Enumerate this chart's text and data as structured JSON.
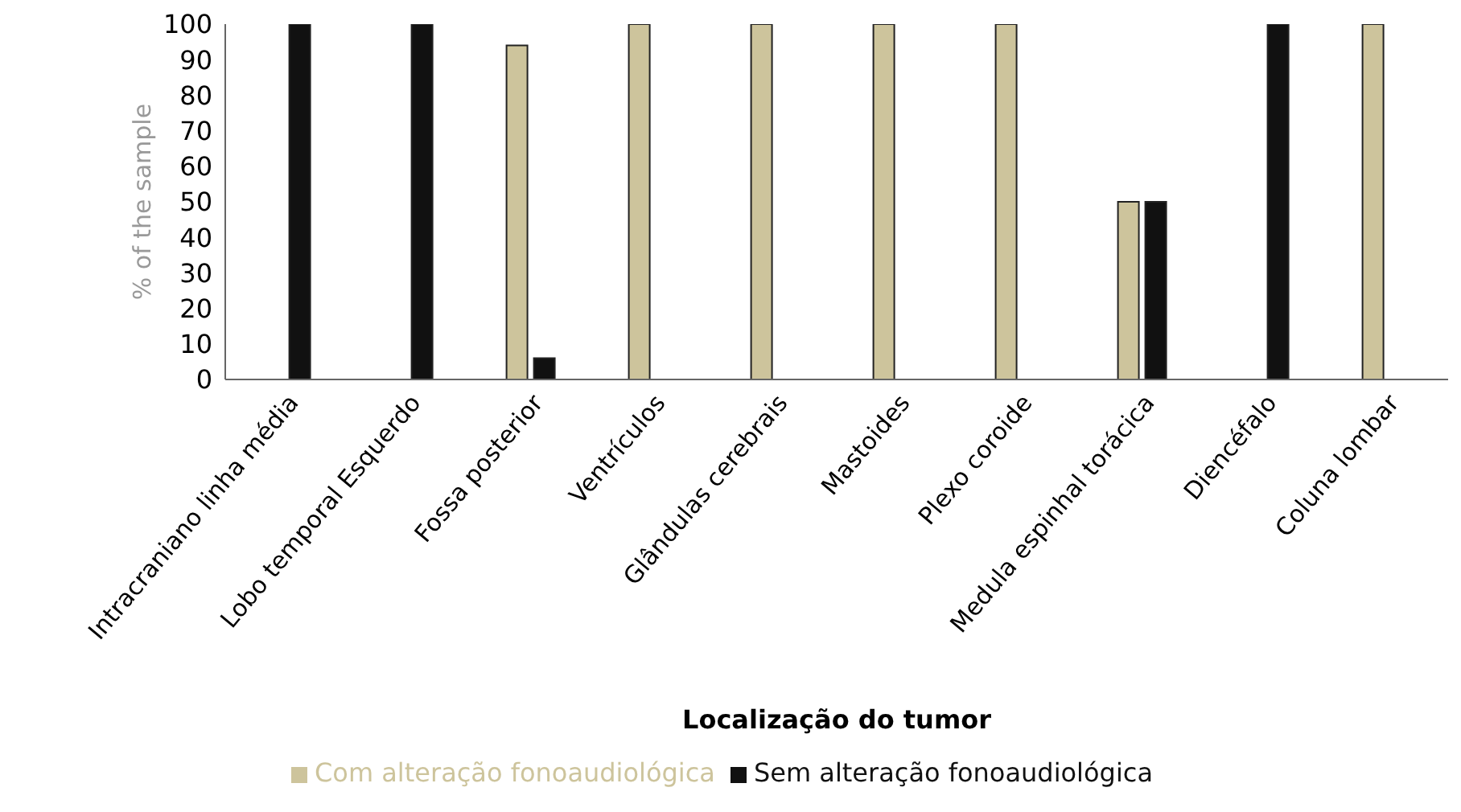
{
  "chart_data": {
    "type": "bar",
    "xlabel": "Localização do tumor",
    "ylabel": "% of the sample",
    "categories": [
      "Intracraniano linha média",
      "Lobo temporal Esquerdo",
      "Fossa posterior",
      "Ventrículos",
      "Glândulas cerebrais",
      "Mastoides",
      "Plexo coroide",
      "Medula espinhal torácica",
      "Diencéfalo",
      "Coluna lombar"
    ],
    "series": [
      {
        "name": "Com alteração fonoaudiológica",
        "color": "#cdc49c",
        "values": [
          0,
          0,
          94,
          100,
          100,
          100,
          100,
          50,
          0,
          100
        ]
      },
      {
        "name": "Sem alteração fonoaudiológica",
        "color": "#111111",
        "values": [
          100,
          100,
          6,
          0,
          0,
          0,
          0,
          50,
          100,
          0
        ]
      }
    ],
    "ylim": [
      0,
      100
    ],
    "yticks": [
      0,
      10,
      20,
      30,
      40,
      50,
      60,
      70,
      80,
      90,
      100
    ],
    "grid": false,
    "legend": "bottom"
  }
}
